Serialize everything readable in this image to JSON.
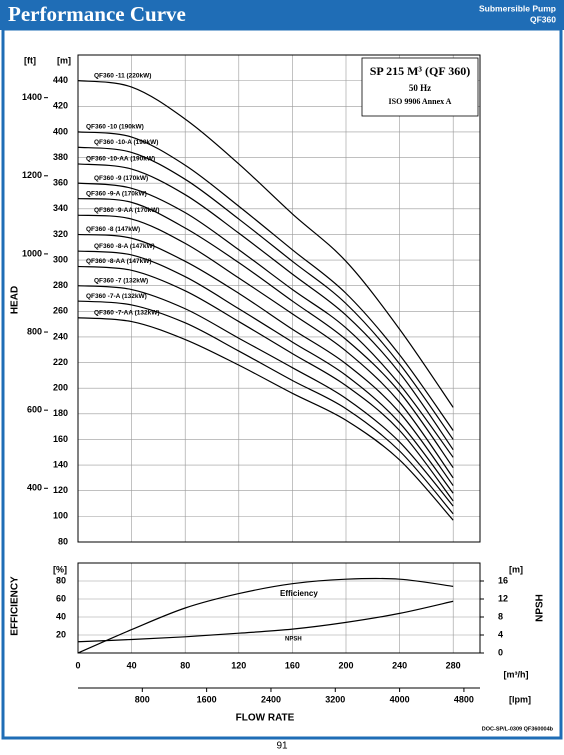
{
  "header": {
    "title": "Performance Curve",
    "product": [
      "Submersible Pump",
      "QF360"
    ]
  },
  "footer": {
    "doc": "DOC-SP/L-0309 QF360004b",
    "page": "91"
  },
  "chart_data": [
    {
      "type": "line",
      "y_title": "HEAD",
      "y_label": "[m]",
      "y2_label": "[ft]",
      "annotations": [
        "SP 215 M³ (QF 360)",
        "50 Hz",
        "ISO 9906 Annex A"
      ],
      "x": [
        0,
        40,
        80,
        120,
        160,
        200,
        240,
        280
      ],
      "xlim": [
        0,
        300
      ],
      "xticks": [
        0,
        40,
        80,
        120,
        160,
        200,
        240,
        280
      ],
      "ylim": [
        80,
        460
      ],
      "yticks": [
        80,
        100,
        120,
        140,
        160,
        180,
        200,
        220,
        240,
        260,
        280,
        300,
        320,
        340,
        360,
        380,
        400,
        420,
        440
      ],
      "y2lim": [
        262.5,
        1509.2
      ],
      "y2ticks": [
        400,
        600,
        800,
        1000,
        1200,
        1400
      ],
      "grid": true,
      "series": [
        {
          "name": "QF360 -11 (220kW)",
          "color": "#000000",
          "values": [
            440,
            435,
            410,
            375,
            336,
            299,
            246,
            185
          ]
        },
        {
          "name": "QF360 -10 (190kW)",
          "color": "#000000",
          "values": [
            400,
            396,
            374,
            342,
            308,
            274,
            226,
            167
          ]
        },
        {
          "name": "QF360 -10-A (190kW)",
          "color": "#000000",
          "values": [
            388,
            384,
            363,
            332,
            299,
            266,
            219,
            160
          ]
        },
        {
          "name": "QF360 -10-AA (190kW)",
          "color": "#000000",
          "values": [
            375,
            371,
            351,
            321,
            289,
            257,
            212,
            152
          ]
        },
        {
          "name": "QF360 -9 (170kW)",
          "color": "#000000",
          "values": [
            360,
            356,
            337,
            308,
            277,
            247,
            203,
            146
          ]
        },
        {
          "name": "QF360 -9-A (170kW)",
          "color": "#000000",
          "values": [
            348,
            345,
            325,
            298,
            268,
            238,
            197,
            138
          ]
        },
        {
          "name": "QF360 -9-AA (170kW)",
          "color": "#000000",
          "values": [
            335,
            332,
            313,
            286,
            258,
            229,
            189,
            130
          ]
        },
        {
          "name": "QF360 -8 (147kW)",
          "color": "#000000",
          "values": [
            320,
            317,
            299,
            274,
            246,
            219,
            181,
            124
          ]
        },
        {
          "name": "QF360 -8-A (147kW)",
          "color": "#000000",
          "values": [
            307,
            304,
            287,
            262,
            236,
            210,
            173,
            118
          ]
        },
        {
          "name": "QF360 -8-AA (147kW)",
          "color": "#000000",
          "values": [
            295,
            292,
            276,
            252,
            227,
            202,
            167,
            112
          ]
        },
        {
          "name": "QF360 -7 (132kW)",
          "color": "#000000",
          "values": [
            280,
            277,
            262,
            239,
            216,
            192,
            158,
            108
          ]
        },
        {
          "name": "QF360 -7-A (132kW)",
          "color": "#000000",
          "values": [
            268,
            265,
            251,
            229,
            206,
            184,
            151,
            102
          ]
        },
        {
          "name": "QF360 -7-AA (132kW)",
          "color": "#000000",
          "values": [
            255,
            252,
            238,
            218,
            196,
            175,
            144,
            97
          ]
        }
      ]
    },
    {
      "type": "line",
      "y_title": "EFFICIENCY",
      "y_label": "[%]",
      "y2_title": "NPSH",
      "y2_label": "[m]",
      "x_label": "[m³/h]",
      "x2_label": "[lpm]",
      "x_title": "FLOW RATE",
      "x": [
        0,
        40,
        80,
        120,
        160,
        200,
        240,
        280
      ],
      "xlim": [
        0,
        300
      ],
      "xticks": [
        0,
        40,
        80,
        120,
        160,
        200,
        240,
        280
      ],
      "x2lim": [
        0,
        5000
      ],
      "x2ticks": [
        800,
        1600,
        2400,
        3200,
        4000,
        4800
      ],
      "ylim": [
        0,
        100
      ],
      "yticks": [
        20,
        40,
        60,
        80
      ],
      "y2lim": [
        0,
        20
      ],
      "y2ticks": [
        0,
        4,
        8,
        12,
        16
      ],
      "grid": true,
      "series": [
        {
          "name": "Efficiency",
          "color": "#000000",
          "values": [
            0,
            26,
            50,
            66,
            77,
            82,
            82,
            74
          ]
        },
        {
          "name": "NPSH",
          "color": "#000000",
          "axis": "y2",
          "values": [
            2.5,
            3,
            3.6,
            4.4,
            5.3,
            6.8,
            8.8,
            11.5
          ]
        }
      ]
    }
  ]
}
